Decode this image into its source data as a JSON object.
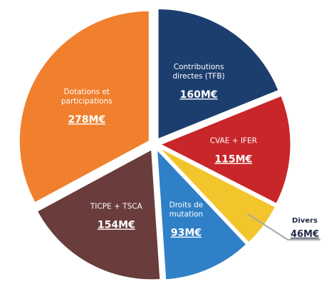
{
  "chart_data": {
    "type": "pie",
    "title": "",
    "slices": [
      {
        "label_lines": [
          "Contributions",
          "directes (TFB)"
        ],
        "value_label": "160M€",
        "value": 160,
        "color": "#1c3e6e",
        "placement": "inside"
      },
      {
        "label_lines": [
          "CVAE + IFER"
        ],
        "value_label": "115M€",
        "value": 115,
        "color": "#c8262a",
        "placement": "inside"
      },
      {
        "label_lines": [
          "Divers"
        ],
        "value_label": "46M€",
        "value": 46,
        "color": "#f2c52d",
        "placement": "outside"
      },
      {
        "label_lines": [
          "Droits de",
          "mutation"
        ],
        "value_label": "93M€",
        "value": 93,
        "color": "#2f80c7",
        "placement": "inside"
      },
      {
        "label_lines": [
          "TICPE + TSCA"
        ],
        "value_label": "154M€",
        "value": 154,
        "color": "#6a3c3c",
        "placement": "inside"
      },
      {
        "label_lines": [
          "Dotations et",
          "participations"
        ],
        "value_label": "278M€",
        "value": 278,
        "color": "#f07f2e",
        "placement": "inside"
      }
    ],
    "unit": "M€",
    "start": "top, clockwise",
    "exploded": true
  }
}
